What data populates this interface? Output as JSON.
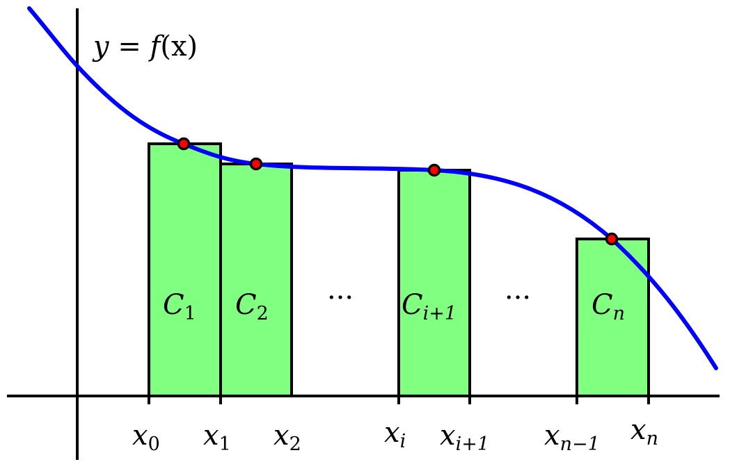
{
  "function_label": {
    "prefix": "y = ",
    "fname": "f",
    "arg": "(x)"
  },
  "colors": {
    "curve": "#0000ff",
    "rect_fill": "#80ff80",
    "point": "#ff0000",
    "axis": "#000000"
  },
  "rectangles": [
    {
      "letter": "C",
      "sub": "1"
    },
    {
      "letter": "C",
      "sub": "2"
    },
    {
      "letter": "C",
      "sub": "i+1"
    },
    {
      "letter": "C",
      "sub": "n"
    }
  ],
  "ellipses": [
    "···",
    "···"
  ],
  "x_labels": [
    {
      "base": "x",
      "sub": "0"
    },
    {
      "base": "x",
      "sub": "1"
    },
    {
      "base": "x",
      "sub": "2"
    },
    {
      "base": "x",
      "sub": "i"
    },
    {
      "base": "x",
      "sub": "i+1"
    },
    {
      "base": "x",
      "sub": "n−1"
    },
    {
      "base": "x",
      "sub": "n"
    }
  ]
}
